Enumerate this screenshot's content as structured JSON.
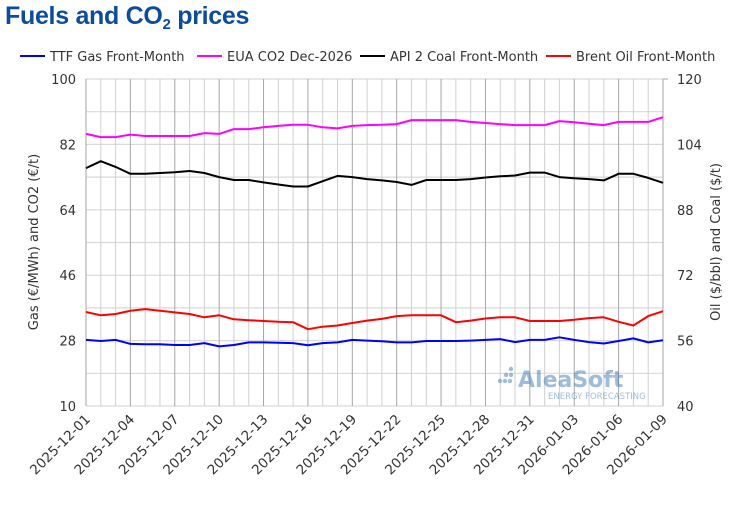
{
  "chart_data": {
    "type": "line",
    "title_main": "Fuels and CO",
    "title_sub": "2",
    "title_end": " prices",
    "ylabel_left": "Gas (€/MWh) and CO2 (€/t)",
    "ylabel_right": "Oil ($/bbl) and Coal ($/t)",
    "ylim_left": [
      10,
      100
    ],
    "yticks_left": [
      10,
      28,
      46,
      64,
      82,
      100
    ],
    "ylim_right": [
      40,
      120
    ],
    "yticks_right": [
      40,
      56,
      72,
      88,
      104,
      120
    ],
    "grid": true,
    "legend_position": "top",
    "x": [
      "2025-12-01",
      "2025-12-02",
      "2025-12-03",
      "2025-12-04",
      "2025-12-05",
      "2025-12-06",
      "2025-12-07",
      "2025-12-08",
      "2025-12-09",
      "2025-12-10",
      "2025-12-11",
      "2025-12-12",
      "2025-12-13",
      "2025-12-14",
      "2025-12-15",
      "2025-12-16",
      "2025-12-17",
      "2025-12-18",
      "2025-12-19",
      "2025-12-20",
      "2025-12-21",
      "2025-12-22",
      "2025-12-23",
      "2025-12-24",
      "2025-12-25",
      "2025-12-26",
      "2025-12-27",
      "2025-12-28",
      "2025-12-29",
      "2025-12-30",
      "2025-12-31",
      "2026-01-01",
      "2026-01-02",
      "2026-01-03",
      "2026-01-04",
      "2026-01-05",
      "2026-01-06",
      "2026-01-07",
      "2026-01-08",
      "2026-01-09"
    ],
    "xtick_labels": [
      "2025-12-01",
      "2025-12-04",
      "2025-12-07",
      "2025-12-10",
      "2025-12-13",
      "2025-12-16",
      "2025-12-19",
      "2025-12-22",
      "2025-12-25",
      "2025-12-28",
      "2025-12-31",
      "2026-01-03",
      "2026-01-06",
      "2026-01-09"
    ],
    "series": [
      {
        "name": "TTF Gas Front-Month",
        "axis": "left",
        "color": "#0000ff",
        "values": [
          28.2,
          27.9,
          28.2,
          27.1,
          27.0,
          27.0,
          26.8,
          26.8,
          27.3,
          26.4,
          26.8,
          27.5,
          27.5,
          27.4,
          27.3,
          26.7,
          27.3,
          27.5,
          28.2,
          28.0,
          27.8,
          27.5,
          27.5,
          27.9,
          27.9,
          27.9,
          28.0,
          28.2,
          28.4,
          27.6,
          28.2,
          28.2,
          28.9,
          28.2,
          27.6,
          27.2,
          27.9,
          28.6,
          27.5,
          28.1
        ]
      },
      {
        "name": "EUA CO2 Dec-2026",
        "axis": "left",
        "color": "#ff00ff",
        "values": [
          84.9,
          84.0,
          84.0,
          84.7,
          84.3,
          84.3,
          84.3,
          84.3,
          85.1,
          84.9,
          86.2,
          86.2,
          86.7,
          87.1,
          87.4,
          87.4,
          86.7,
          86.4,
          87.1,
          87.3,
          87.4,
          87.6,
          88.7,
          88.7,
          88.7,
          88.7,
          88.2,
          87.9,
          87.6,
          87.3,
          87.3,
          87.3,
          88.4,
          88.1,
          87.7,
          87.3,
          88.2,
          88.2,
          88.2,
          89.5
        ]
      },
      {
        "name": "API 2 Coal Front-Month",
        "axis": "right",
        "color": "#000000",
        "values": [
          98.2,
          99.9,
          98.5,
          96.8,
          96.8,
          97.0,
          97.2,
          97.5,
          97.0,
          96.0,
          95.3,
          95.3,
          94.7,
          94.2,
          93.7,
          93.7,
          95.0,
          96.3,
          96.0,
          95.5,
          95.2,
          94.8,
          94.1,
          95.3,
          95.3,
          95.3,
          95.5,
          95.9,
          96.2,
          96.4,
          97.1,
          97.1,
          96.0,
          95.7,
          95.5,
          95.2,
          96.8,
          96.8,
          95.8,
          94.6
        ]
      },
      {
        "name": "Brent Oil Front-Month",
        "axis": "right",
        "color": "#ff0000",
        "values": [
          63.0,
          62.2,
          62.5,
          63.3,
          63.7,
          63.3,
          62.9,
          62.5,
          61.7,
          62.2,
          61.2,
          61.0,
          60.8,
          60.6,
          60.5,
          58.8,
          59.4,
          59.7,
          60.3,
          60.9,
          61.3,
          62.0,
          62.2,
          62.2,
          62.2,
          60.5,
          60.9,
          61.4,
          61.7,
          61.7,
          60.8,
          60.8,
          60.8,
          61.1,
          61.5,
          61.7,
          60.6,
          59.7,
          62.0,
          63.2
        ]
      }
    ],
    "watermark": {
      "brand": "AleaSoft",
      "tagline": "ENERGY FORECASTING"
    }
  }
}
